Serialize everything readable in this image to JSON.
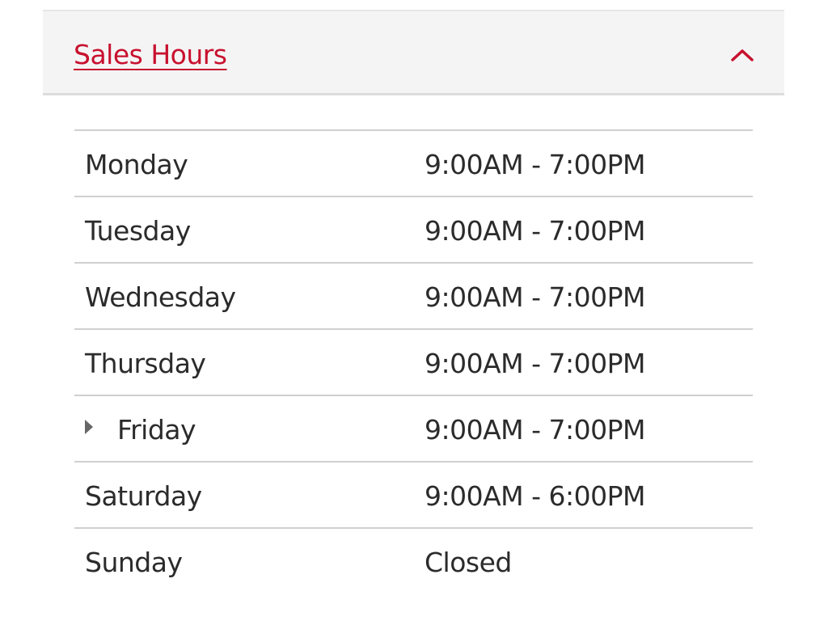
{
  "header": {
    "title": "Sales Hours",
    "expanded": true,
    "accent_color": "#c8102e",
    "toggle_icon": "chevron-up-icon"
  },
  "hours": [
    {
      "day": "Monday",
      "hours": "9:00AM - 7:00PM",
      "current": false
    },
    {
      "day": "Tuesday",
      "hours": "9:00AM - 7:00PM",
      "current": false
    },
    {
      "day": "Wednesday",
      "hours": "9:00AM - 7:00PM",
      "current": false
    },
    {
      "day": "Thursday",
      "hours": "9:00AM - 7:00PM",
      "current": false
    },
    {
      "day": "Friday",
      "hours": "9:00AM - 7:00PM",
      "current": true
    },
    {
      "day": "Saturday",
      "hours": "9:00AM - 6:00PM",
      "current": false
    },
    {
      "day": "Sunday",
      "hours": "Closed",
      "current": false
    }
  ]
}
